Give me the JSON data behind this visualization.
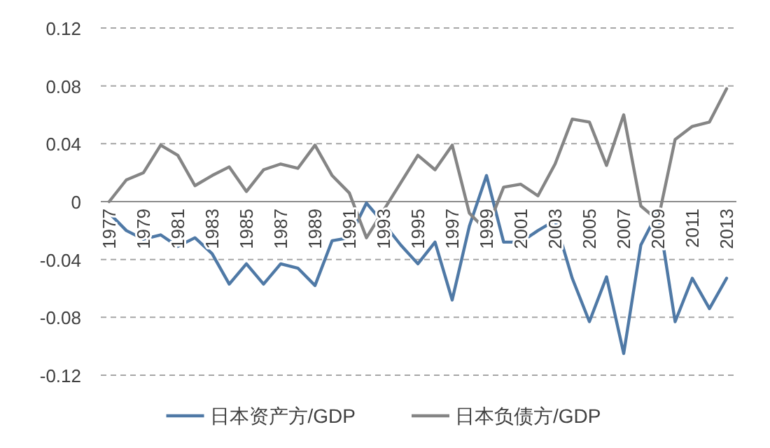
{
  "chart_data": {
    "type": "line",
    "categories": [
      "1977",
      null,
      "1979",
      null,
      "1981",
      null,
      "1983",
      null,
      "1985",
      null,
      "1987",
      null,
      "1989",
      null,
      "1991",
      null,
      "1993",
      null,
      "1995",
      null,
      "1997",
      null,
      "1999",
      null,
      "2001",
      null,
      "2003",
      null,
      "2005",
      null,
      "2007",
      null,
      "2009",
      null,
      "2011",
      null,
      "2013"
    ],
    "series": [
      {
        "name": "日本资产方/GDP",
        "color": "#4f79a6",
        "values": [
          -0.008,
          -0.02,
          -0.026,
          -0.023,
          -0.031,
          -0.025,
          -0.036,
          -0.057,
          -0.043,
          -0.057,
          -0.043,
          -0.046,
          -0.058,
          -0.027,
          -0.025,
          -0.001,
          -0.015,
          -0.03,
          -0.043,
          -0.028,
          -0.068,
          -0.017,
          0.018,
          -0.028,
          -0.028,
          -0.02,
          -0.013,
          -0.053,
          -0.083,
          -0.052,
          -0.105,
          -0.03,
          -0.007,
          -0.083,
          -0.053,
          -0.074,
          -0.053
        ]
      },
      {
        "name": "日本负债方/GDP",
        "color": "#858585",
        "values": [
          0,
          0.015,
          0.02,
          0.039,
          0.032,
          0.011,
          0.018,
          0.024,
          0.007,
          0.022,
          0.026,
          0.023,
          0.039,
          0.018,
          0.006,
          -0.025,
          -0.006,
          0.013,
          0.032,
          0.022,
          0.039,
          -0.008,
          -0.02,
          0.01,
          0.012,
          0.004,
          0.026,
          0.057,
          0.055,
          0.025,
          0.06,
          -0.003,
          -0.013,
          0.043,
          0.052,
          0.055,
          0.078
        ]
      }
    ],
    "ylim": [
      -0.12,
      0.12
    ],
    "yticks": [
      -0.12,
      -0.08,
      -0.04,
      0,
      0.04,
      0.08,
      0.12
    ],
    "grid": "y",
    "legend": "bottom",
    "line_style": "solid"
  }
}
